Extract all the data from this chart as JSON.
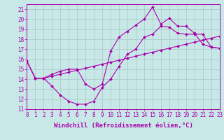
{
  "background_color": "#c8e8e8",
  "grid_color": "#a8c8c8",
  "line_color": "#aa00aa",
  "marker_color": "#aa00aa",
  "xlabel": "Windchill (Refroidissement éolien,°C)",
  "xlim": [
    0,
    23
  ],
  "ylim": [
    11,
    21.5
  ],
  "yticks": [
    11,
    12,
    13,
    14,
    15,
    16,
    17,
    18,
    19,
    20,
    21
  ],
  "xticks": [
    0,
    1,
    2,
    3,
    4,
    5,
    6,
    7,
    8,
    9,
    10,
    11,
    12,
    13,
    14,
    15,
    16,
    17,
    18,
    19,
    20,
    21,
    22,
    23
  ],
  "line1_x": [
    0,
    1,
    2,
    3,
    4,
    5,
    6,
    7,
    8,
    9,
    10,
    11,
    12,
    13,
    14,
    15,
    16,
    17,
    18,
    19,
    20,
    21,
    22,
    23
  ],
  "line1_y": [
    15.8,
    14.1,
    14.1,
    14.3,
    14.5,
    14.7,
    14.9,
    15.1,
    15.3,
    15.5,
    15.7,
    15.9,
    16.1,
    16.3,
    16.5,
    16.7,
    16.9,
    17.1,
    17.3,
    17.5,
    17.7,
    17.9,
    18.1,
    18.3
  ],
  "line2_x": [
    0,
    1,
    2,
    3,
    4,
    5,
    6,
    7,
    8,
    9,
    10,
    11,
    12,
    13,
    14,
    15,
    16,
    17,
    18,
    19,
    20,
    21,
    22,
    23
  ],
  "line2_y": [
    15.8,
    14.1,
    14.1,
    13.3,
    12.4,
    11.8,
    11.5,
    11.5,
    11.8,
    13.2,
    14.0,
    15.3,
    16.5,
    17.0,
    18.2,
    18.5,
    19.3,
    19.2,
    18.6,
    18.5,
    18.5,
    18.5,
    17.2,
    17.1
  ],
  "line3_x": [
    0,
    1,
    2,
    3,
    4,
    5,
    6,
    7,
    8,
    9,
    10,
    11,
    12,
    13,
    14,
    15,
    16,
    17,
    18,
    19,
    20,
    21,
    22,
    23
  ],
  "line3_y": [
    15.8,
    14.1,
    14.1,
    14.5,
    14.8,
    15.0,
    15.0,
    13.5,
    13.0,
    13.5,
    16.8,
    18.2,
    18.8,
    19.4,
    20.0,
    21.2,
    19.5,
    20.1,
    19.3,
    19.3,
    18.6,
    17.5,
    17.2,
    17.1
  ],
  "xlabel_fontsize": 6.5,
  "tick_fontsize": 5.5
}
